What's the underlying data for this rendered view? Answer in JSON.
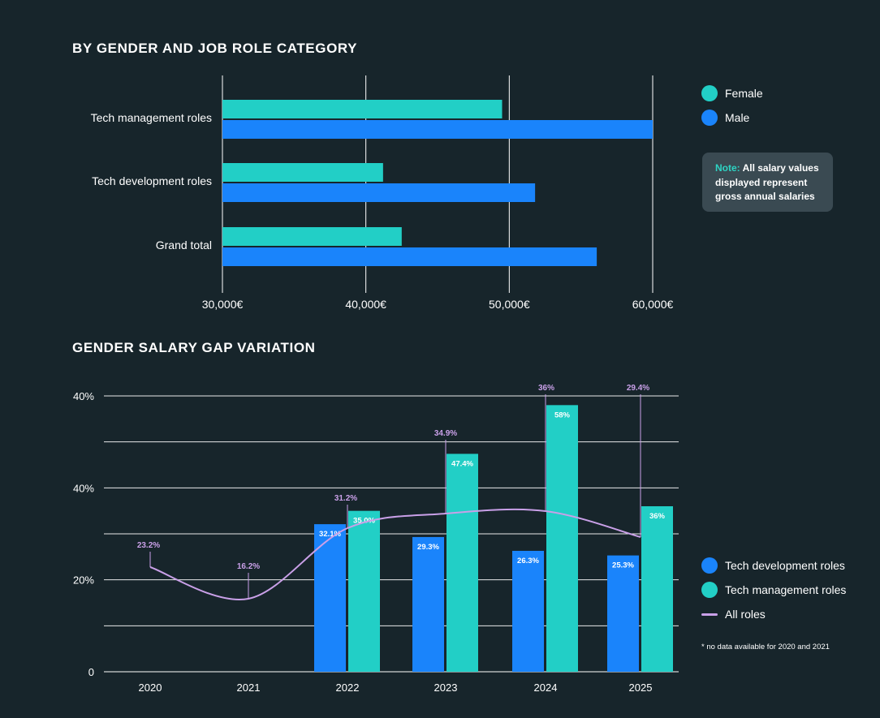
{
  "colors": {
    "background": "#17252b",
    "female": "#22cfc6",
    "male": "#1a84fb",
    "all_roles_line": "#c9a0e8",
    "grid": "#ffffff"
  },
  "legend_top": [
    {
      "label": "Female",
      "color": "#22cfc6"
    },
    {
      "label": "Male",
      "color": "#1a84fb"
    }
  ],
  "note": {
    "prefix": "Note:",
    "text": "All salary values displayed represent gross annual salaries"
  },
  "legend_bottom": [
    {
      "label": "Tech development roles",
      "color": "#1a84fb",
      "kind": "dot"
    },
    {
      "label": "Tech management roles",
      "color": "#22cfc6",
      "kind": "dot"
    },
    {
      "label": "All roles",
      "color": "#c9a0e8",
      "kind": "line"
    }
  ],
  "footnote": "* no data available for 2020 and 2021",
  "chart_data": [
    {
      "type": "bar",
      "orientation": "horizontal",
      "title": "BY GENDER AND JOB ROLE CATEGORY",
      "categories": [
        "Tech management roles",
        "Tech development roles",
        "Grand total"
      ],
      "series": [
        {
          "name": "Female",
          "values": [
            49500,
            41200,
            42500
          ]
        },
        {
          "name": "Male",
          "values": [
            60000,
            51800,
            56100
          ]
        }
      ],
      "xlim": [
        30000,
        60000
      ],
      "xticks": [
        30000,
        40000,
        50000,
        60000
      ],
      "xtick_labels": [
        "30,000€",
        "40,000€",
        "50,000€",
        "60,000€"
      ],
      "grid": "vertical",
      "legend": "right"
    },
    {
      "type": "bar",
      "title": "GENDER SALARY GAP VARIATION",
      "categories": [
        "2020",
        "2021",
        "2022",
        "2023",
        "2024",
        "2025"
      ],
      "ytick_labels": [
        "0",
        "20%",
        "40%",
        "40%"
      ],
      "series": [
        {
          "name": "Tech development roles",
          "values": [
            null,
            null,
            32.1,
            29.3,
            26.3,
            25.3
          ],
          "labels": [
            "",
            "",
            "32.1%",
            "29.3%",
            "26.3%",
            "25.3%"
          ]
        },
        {
          "name": "Tech management roles",
          "values": [
            null,
            null,
            35.0,
            47.4,
            58,
            36
          ],
          "labels": [
            "",
            "",
            "35.0%",
            "47.4%",
            "58%",
            "36%"
          ]
        },
        {
          "name": "All roles",
          "kind": "line",
          "values": [
            23.2,
            16.2,
            31.2,
            34.9,
            36,
            29.4
          ],
          "labels": [
            "23.2%",
            "16.2%",
            "31.2%",
            "34.9%",
            "36%",
            "29.4%"
          ]
        }
      ],
      "grid": "horizontal",
      "legend": "right"
    }
  ]
}
